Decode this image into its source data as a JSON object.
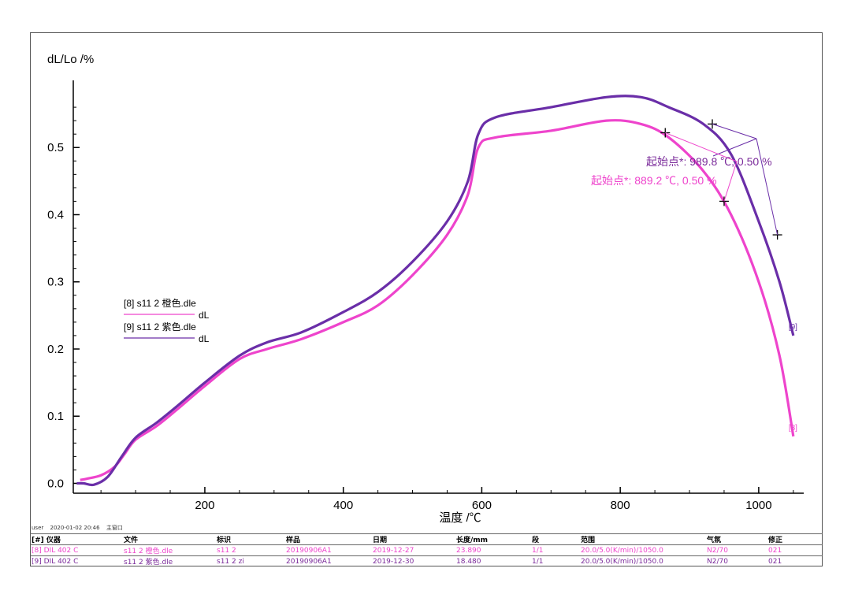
{
  "chart_data": {
    "type": "line",
    "ylabel": "dL/Lo /%",
    "xlabel": "温度 /℃",
    "xlim": [
      10,
      1065
    ],
    "ylim": [
      -0.01,
      0.6
    ],
    "x_ticks": [
      200,
      400,
      600,
      800,
      1000
    ],
    "x_tick_labels": [
      "200",
      "400",
      "600",
      "800",
      "1000"
    ],
    "y_ticks": [
      0.0,
      0.1,
      0.2,
      0.3,
      0.4,
      0.5
    ],
    "y_tick_labels": [
      "0.0",
      "0.1",
      "0.2",
      "0.3",
      "0.4",
      "0.5"
    ],
    "grid": false,
    "legend_position": "left-middle",
    "legend": [
      {
        "file": "[8] s11 2 橙色.dle",
        "curve": "dL"
      },
      {
        "file": "[9] s11 2 紫色.dle",
        "curve": "dL"
      }
    ],
    "series": [
      {
        "color": "#ee44cc",
        "end_label": "[8]",
        "x": [
          20,
          30,
          50,
          70,
          85,
          100,
          130,
          160,
          200,
          250,
          290,
          340,
          400,
          450,
          500,
          550,
          580,
          595,
          620,
          700,
          780,
          830,
          870,
          920,
          960,
          1000,
          1030,
          1050
        ],
        "y": [
          0.005,
          0.007,
          0.012,
          0.025,
          0.045,
          0.065,
          0.085,
          0.11,
          0.145,
          0.185,
          0.2,
          0.215,
          0.24,
          0.265,
          0.31,
          0.37,
          0.43,
          0.5,
          0.515,
          0.525,
          0.54,
          0.535,
          0.515,
          0.465,
          0.4,
          0.3,
          0.19,
          0.07
        ]
      },
      {
        "color": "#6a2ea8",
        "end_label": "[9]",
        "x": [
          15,
          25,
          40,
          60,
          80,
          100,
          130,
          160,
          200,
          250,
          290,
          340,
          400,
          450,
          500,
          550,
          580,
          595,
          620,
          700,
          780,
          830,
          870,
          920,
          960,
          1000,
          1030,
          1050
        ],
        "y": [
          0.0,
          0.0,
          -0.002,
          0.01,
          0.04,
          0.068,
          0.09,
          0.115,
          0.15,
          0.19,
          0.21,
          0.225,
          0.255,
          0.285,
          0.33,
          0.39,
          0.45,
          0.52,
          0.545,
          0.56,
          0.575,
          0.575,
          0.56,
          0.535,
          0.49,
          0.39,
          0.3,
          0.22
        ]
      }
    ],
    "annotations": [
      {
        "text": "起始点*: 989.8 ℃, 0.50 %",
        "color": "#7a2a9a"
      },
      {
        "text": "起始点*: 889.2 ℃, 0.50 %",
        "color": "#ee44cc"
      }
    ],
    "markers": [
      {
        "x": 865,
        "y": 0.522,
        "series": 0
      },
      {
        "x": 950,
        "y": 0.42,
        "series": 0
      },
      {
        "x": 933,
        "y": 0.535,
        "series": 1
      },
      {
        "x": 1027,
        "y": 0.37,
        "series": 1
      }
    ]
  },
  "meta": {
    "user": "user",
    "datetime": "2020-01-02 20:46",
    "window": "主窗口"
  },
  "table": {
    "headers": [
      "[#] 仪器",
      "文件",
      "标识",
      "样品",
      "日期",
      "长度/mm",
      "段",
      "范围",
      "气氛",
      "修正"
    ],
    "rows": [
      [
        "[8] DIL 402 C",
        "s11 2 橙色.dle",
        "s11 2",
        "20190906A1",
        "2019-12-27",
        "23.890",
        "1/1",
        "20.0/5.0(K/min)/1050.0",
        "N2/70",
        "021"
      ],
      [
        "[9] DIL 402 C",
        "s11 2 紫色.dle",
        "s11 2 zi",
        "20190906A1",
        "2019-12-30",
        "18.480",
        "1/1",
        "20.0/5.0(K/min)/1050.0",
        "N2/70",
        "021"
      ]
    ],
    "row_colors": [
      "#ee44cc",
      "#7a2a9a"
    ]
  }
}
